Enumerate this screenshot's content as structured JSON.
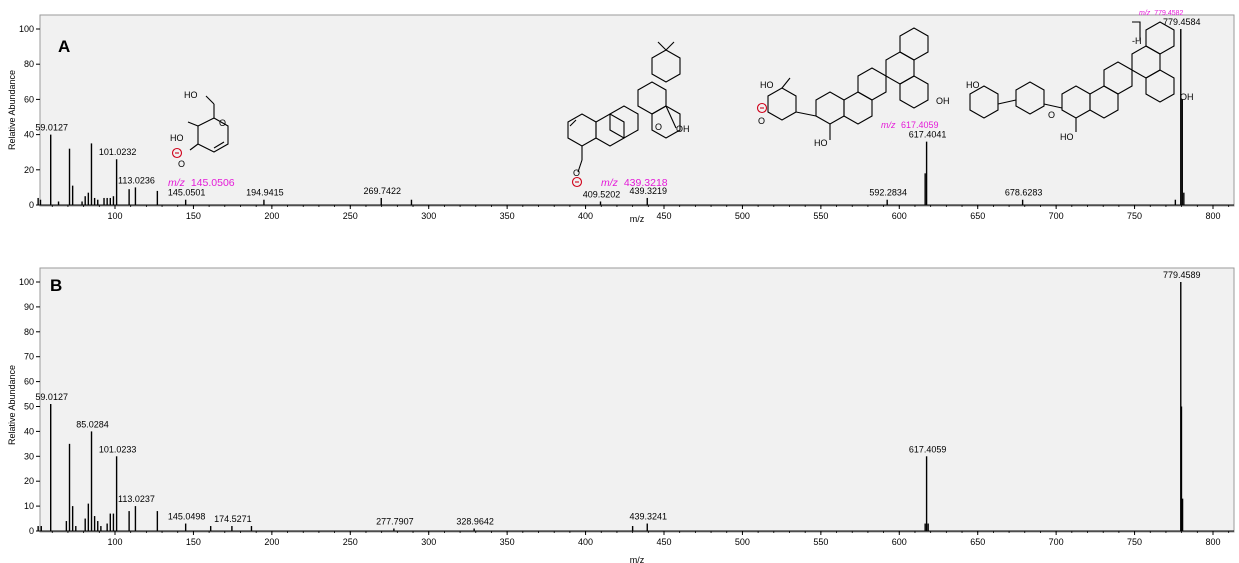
{
  "chart_data": [
    {
      "panel": "A",
      "type": "bar",
      "xlabel": "m/z",
      "ylabel": "Relative Abundance",
      "xlim": [
        50,
        815
      ],
      "ylim": [
        0,
        100
      ],
      "x_ticks": [
        100,
        150,
        200,
        250,
        300,
        350,
        400,
        450,
        500,
        550,
        600,
        650,
        700,
        750,
        800
      ],
      "y_ticks": [
        0,
        20,
        40,
        60,
        80,
        100
      ],
      "peaks": [
        {
          "mz": 51,
          "intensity": 4
        },
        {
          "mz": 52.5,
          "intensity": 3
        },
        {
          "mz": 59.0127,
          "intensity": 40,
          "label": "59.0127"
        },
        {
          "mz": 64,
          "intensity": 2
        },
        {
          "mz": 71,
          "intensity": 32
        },
        {
          "mz": 73,
          "intensity": 11
        },
        {
          "mz": 79,
          "intensity": 2
        },
        {
          "mz": 81,
          "intensity": 5
        },
        {
          "mz": 83,
          "intensity": 7
        },
        {
          "mz": 85,
          "intensity": 35
        },
        {
          "mz": 87,
          "intensity": 4
        },
        {
          "mz": 89,
          "intensity": 3
        },
        {
          "mz": 93,
          "intensity": 4
        },
        {
          "mz": 95,
          "intensity": 4
        },
        {
          "mz": 97,
          "intensity": 4
        },
        {
          "mz": 99,
          "intensity": 5
        },
        {
          "mz": 101.0232,
          "intensity": 26,
          "label": "101.0232"
        },
        {
          "mz": 109,
          "intensity": 9
        },
        {
          "mz": 113.0236,
          "intensity": 10,
          "label": "113.0236"
        },
        {
          "mz": 127,
          "intensity": 8
        },
        {
          "mz": 145.0501,
          "intensity": 3,
          "label": "145.0501"
        },
        {
          "mz": 194.9415,
          "intensity": 3,
          "label": "194.9415"
        },
        {
          "mz": 269.7422,
          "intensity": 4,
          "label": "269.7422"
        },
        {
          "mz": 289,
          "intensity": 3
        },
        {
          "mz": 409.5202,
          "intensity": 2,
          "label": "409.5202"
        },
        {
          "mz": 439.3219,
          "intensity": 4,
          "label": "439.3219"
        },
        {
          "mz": 592.2834,
          "intensity": 3,
          "label": "592.2834"
        },
        {
          "mz": 616.5,
          "intensity": 18
        },
        {
          "mz": 617.4041,
          "intensity": 36,
          "label": "617.4041"
        },
        {
          "mz": 678.6283,
          "intensity": 3,
          "label": "678.6283"
        },
        {
          "mz": 776,
          "intensity": 3
        },
        {
          "mz": 779.4584,
          "intensity": 100,
          "label": "779.4584"
        },
        {
          "mz": 780.4,
          "intensity": 60
        },
        {
          "mz": 781.4,
          "intensity": 7
        }
      ],
      "annotations": [
        {
          "prefix": "m/z",
          "value": "145.0506"
        },
        {
          "prefix": "m/z",
          "value": "439.3218"
        },
        {
          "prefix": "m/z",
          "value": "617.4059"
        },
        {
          "prefix": "m/z",
          "value": "779.4582"
        }
      ],
      "structure_text": [
        "HO",
        "HO",
        "O",
        "O",
        "OH",
        "HO",
        "O",
        "OH",
        "HO",
        "O",
        "-H"
      ]
    },
    {
      "panel": "B",
      "type": "bar",
      "xlabel": "m/z",
      "ylabel": "Relative Abundance",
      "xlim": [
        50,
        815
      ],
      "ylim": [
        0,
        100
      ],
      "x_ticks": [
        100,
        150,
        200,
        250,
        300,
        350,
        400,
        450,
        500,
        550,
        600,
        650,
        700,
        750,
        800
      ],
      "y_ticks": [
        0,
        10,
        20,
        30,
        40,
        50,
        60,
        70,
        80,
        90,
        100
      ],
      "peaks": [
        {
          "mz": 51,
          "intensity": 2
        },
        {
          "mz": 53,
          "intensity": 2
        },
        {
          "mz": 59.0127,
          "intensity": 51,
          "label": "59.0127"
        },
        {
          "mz": 69,
          "intensity": 4
        },
        {
          "mz": 71,
          "intensity": 35
        },
        {
          "mz": 73,
          "intensity": 10
        },
        {
          "mz": 75,
          "intensity": 2
        },
        {
          "mz": 81,
          "intensity": 5
        },
        {
          "mz": 83,
          "intensity": 11
        },
        {
          "mz": 85.0284,
          "intensity": 40,
          "label": "85.0284"
        },
        {
          "mz": 87,
          "intensity": 6
        },
        {
          "mz": 89,
          "intensity": 4
        },
        {
          "mz": 91,
          "intensity": 2
        },
        {
          "mz": 95,
          "intensity": 3
        },
        {
          "mz": 97,
          "intensity": 7
        },
        {
          "mz": 99,
          "intensity": 7
        },
        {
          "mz": 101.0233,
          "intensity": 30,
          "label": "101.0233"
        },
        {
          "mz": 109,
          "intensity": 8
        },
        {
          "mz": 113.0237,
          "intensity": 10,
          "label": "113.0237"
        },
        {
          "mz": 127,
          "intensity": 8
        },
        {
          "mz": 145.0498,
          "intensity": 3,
          "label": "145.0498"
        },
        {
          "mz": 161,
          "intensity": 2
        },
        {
          "mz": 174.5271,
          "intensity": 2,
          "label": "174.5271"
        },
        {
          "mz": 187,
          "intensity": 2
        },
        {
          "mz": 277.7907,
          "intensity": 1,
          "label": "277.7907"
        },
        {
          "mz": 328.9642,
          "intensity": 1,
          "label": "328.9642"
        },
        {
          "mz": 430,
          "intensity": 2
        },
        {
          "mz": 439.3241,
          "intensity": 3,
          "label": "439.3241"
        },
        {
          "mz": 616.5,
          "intensity": 3
        },
        {
          "mz": 617.4059,
          "intensity": 30,
          "label": "617.4059"
        },
        {
          "mz": 618.4,
          "intensity": 3
        },
        {
          "mz": 779.4589,
          "intensity": 100,
          "label": "779.4589"
        },
        {
          "mz": 779.9,
          "intensity": 50
        },
        {
          "mz": 780.6,
          "intensity": 13
        }
      ]
    }
  ]
}
